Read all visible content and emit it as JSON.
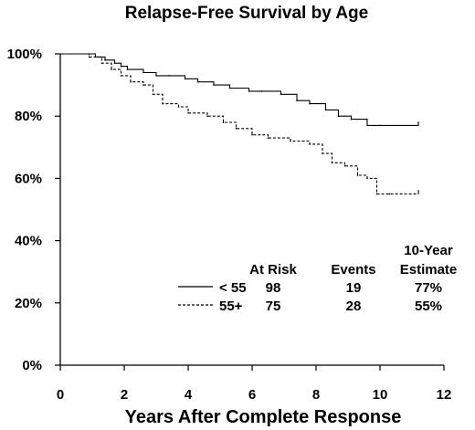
{
  "chart_data": {
    "type": "line",
    "title": "Relapse-Free Survival by Age",
    "xlabel": "Years After Complete Response",
    "ylabel": "",
    "xlim": [
      0,
      12
    ],
    "ylim": [
      0,
      100
    ],
    "x_ticks": [
      "0",
      "2",
      "4",
      "6",
      "8",
      "10",
      "12"
    ],
    "y_ticks": [
      "0%",
      "20%",
      "40%",
      "60%",
      "80%",
      "100%"
    ],
    "grid": false,
    "series": [
      {
        "name": "< 55",
        "line_style": "solid",
        "x": [
          0,
          1.1,
          1.4,
          1.7,
          1.9,
          2.1,
          2.6,
          3.0,
          3.4,
          3.9,
          4.3,
          4.8,
          5.3,
          5.9,
          6.3,
          6.9,
          7.4,
          7.8,
          8.3,
          8.7,
          9.1,
          9.6,
          10.0,
          11.2
        ],
        "values": [
          100,
          99,
          98,
          97,
          96,
          95,
          94,
          93,
          93,
          92,
          91,
          90,
          89,
          88,
          88,
          87,
          85,
          84,
          82,
          80,
          79,
          77,
          77,
          78
        ]
      },
      {
        "name": "55+",
        "line_style": "dashed",
        "x": [
          0,
          0.9,
          1.3,
          1.6,
          1.9,
          2.2,
          2.6,
          2.9,
          3.2,
          3.7,
          4.0,
          4.6,
          5.1,
          5.5,
          6.0,
          6.5,
          7.2,
          7.8,
          8.2,
          8.5,
          8.9,
          9.3,
          9.6,
          9.9,
          10.3,
          11.2
        ],
        "values": [
          100,
          99,
          97,
          95,
          93,
          91,
          90,
          87,
          84,
          83,
          81,
          80,
          78,
          76,
          74,
          73,
          72,
          71,
          68,
          65,
          64,
          61,
          60,
          55,
          55,
          56
        ]
      }
    ],
    "table": {
      "headers": [
        "At Risk",
        "Events",
        "10-Year",
        "Estimate"
      ],
      "rows": [
        {
          "label": "< 55",
          "at_risk": "98",
          "events": "19",
          "estimate": "77%"
        },
        {
          "label": "55+",
          "at_risk": "75",
          "events": "28",
          "estimate": "55%"
        }
      ]
    }
  }
}
